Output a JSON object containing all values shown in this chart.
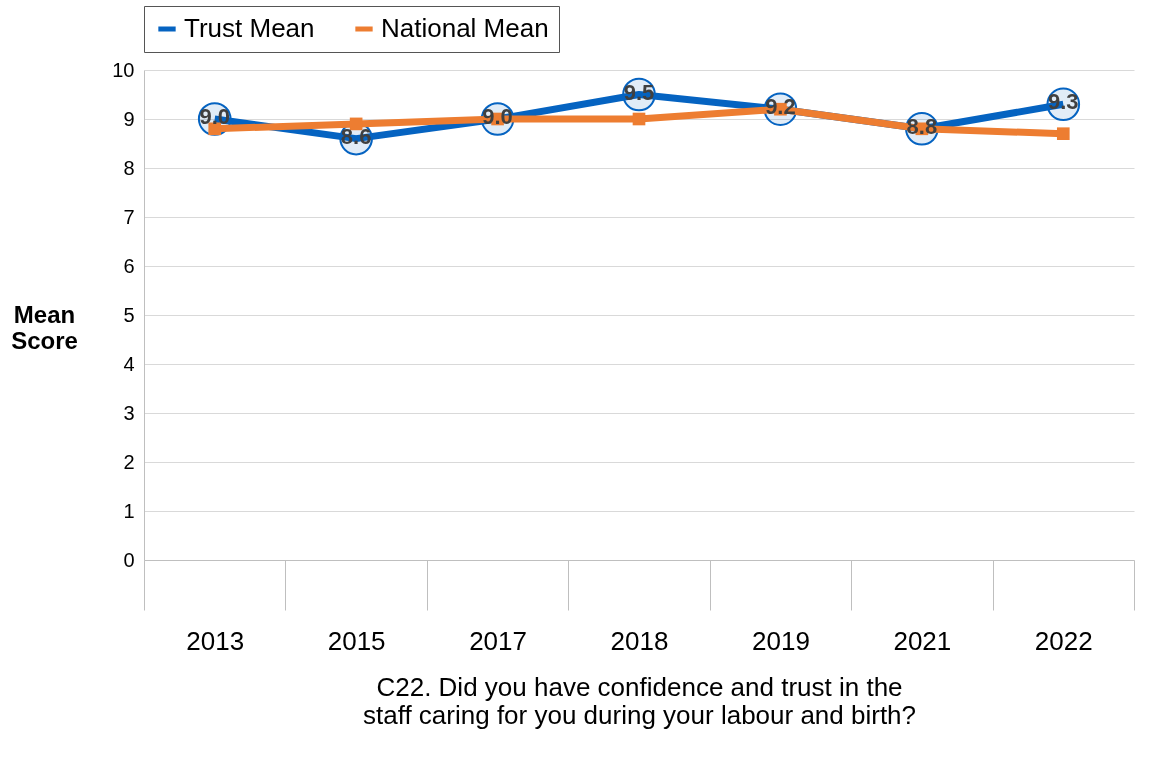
{
  "chart_data": {
    "type": "line",
    "xlabel": "C22. Did you have confidence and trust in the staff caring for you during your labour and birth?",
    "ylabel": "Mean Score",
    "categories": [
      "2013",
      "2015",
      "2017",
      "2018",
      "2019",
      "2021",
      "2022"
    ],
    "series": [
      {
        "name": "Trust Mean",
        "color": "#0563c1",
        "marker": "circle",
        "values": [
          9.0,
          8.6,
          9.0,
          9.5,
          9.2,
          8.8,
          9.3
        ],
        "value_labels": [
          "9.0",
          "8.6",
          "9.0",
          "9.5",
          "9.2",
          "8.8",
          "9.3"
        ]
      },
      {
        "name": "National Mean",
        "color": "#ed7d31",
        "marker": "square",
        "values": [
          8.8,
          8.9,
          9.0,
          9.0,
          9.2,
          8.8,
          8.7
        ]
      }
    ],
    "ylim": [
      0,
      10
    ],
    "yticks": [
      0,
      1,
      2,
      3,
      4,
      5,
      6,
      7,
      8,
      9,
      10
    ],
    "grid": "y",
    "legend": "top"
  }
}
